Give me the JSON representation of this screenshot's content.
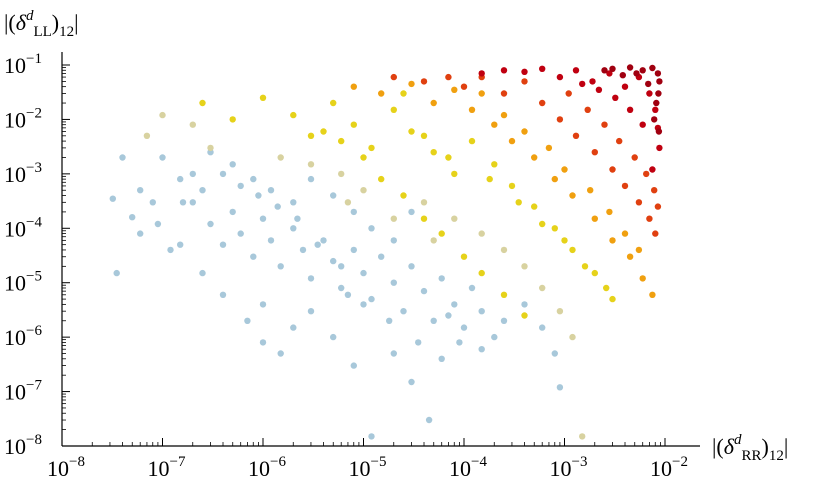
{
  "chart_data": {
    "type": "scatter",
    "title": "",
    "xlabel": {
      "prefix": "|(",
      "symbol": "δ",
      "superscript": "d",
      "subscript": "RR",
      "suffix": ")",
      "index": "12",
      "close": "|"
    },
    "ylabel": {
      "prefix": "|(",
      "symbol": "δ",
      "superscript": "d",
      "subscript": "LL",
      "suffix": ")",
      "index": "12",
      "close": "|"
    },
    "x_scale": "log",
    "y_scale": "log",
    "xlim": [
      1e-08,
      0.01
    ],
    "ylim": [
      1e-08,
      0.1
    ],
    "x_ticks": [
      {
        "base": "10",
        "exp": "−8",
        "value": 1e-08
      },
      {
        "base": "10",
        "exp": "−7",
        "value": 1e-07
      },
      {
        "base": "10",
        "exp": "−6",
        "value": 1e-06
      },
      {
        "base": "10",
        "exp": "−5",
        "value": 1e-05
      },
      {
        "base": "10",
        "exp": "−4",
        "value": 0.0001
      },
      {
        "base": "10",
        "exp": "−3",
        "value": 0.001
      },
      {
        "base": "10",
        "exp": "−2",
        "value": 0.01
      }
    ],
    "y_ticks": [
      {
        "base": "10",
        "exp": "−8",
        "value": 1e-08
      },
      {
        "base": "10",
        "exp": "−7",
        "value": 1e-07
      },
      {
        "base": "10",
        "exp": "−6",
        "value": 1e-06
      },
      {
        "base": "10",
        "exp": "−5",
        "value": 1e-05
      },
      {
        "base": "10",
        "exp": "−4",
        "value": 0.0001
      },
      {
        "base": "10",
        "exp": "−3",
        "value": 0.001
      },
      {
        "base": "10",
        "exp": "−2",
        "value": 0.01
      },
      {
        "base": "10",
        "exp": "−1",
        "value": 0.1
      }
    ],
    "grid": false,
    "legend": "none",
    "colors": {
      "low": "#a8c8da",
      "mid_low": "#d8d2a0",
      "mid": "#e6d21a",
      "mid_high": "#f0a010",
      "high": "#e04010",
      "top": "#c00010",
      "dark": "#a00010"
    },
    "series": [
      {
        "color_group": "low",
        "points": [
          [
            3.2e-08,
            0.00035
          ],
          [
            4e-08,
            0.002
          ],
          [
            5e-08,
            0.00016
          ],
          [
            6e-08,
            0.0005
          ],
          [
            8e-08,
            0.0003
          ],
          [
            1.2e-07,
            4e-05
          ],
          [
            1.5e-07,
            0.0008
          ],
          [
            2e-07,
            0.0003
          ],
          [
            3e-07,
            0.00012
          ],
          [
            4e-07,
            5e-05
          ],
          [
            5e-07,
            0.0002
          ],
          [
            6e-07,
            8e-05
          ],
          [
            8e-07,
            3e-05
          ],
          [
            1e-06,
            0.00015
          ],
          [
            1.2e-06,
            6e-05
          ],
          [
            1.5e-06,
            2e-05
          ],
          [
            2e-06,
            0.0001
          ],
          [
            2.5e-06,
            4e-05
          ],
          [
            3e-06,
            1.2e-05
          ],
          [
            4e-06,
            6e-05
          ],
          [
            5e-06,
            2.5e-05
          ],
          [
            6e-06,
            8e-06
          ],
          [
            8e-06,
            4e-05
          ],
          [
            1e-05,
            1.5e-05
          ],
          [
            1.2e-05,
            5e-06
          ],
          [
            1.5e-05,
            3e-05
          ],
          [
            2e-05,
            1e-05
          ],
          [
            2.5e-05,
            3e-06
          ],
          [
            3e-05,
            2e-05
          ],
          [
            4e-05,
            7e-06
          ],
          [
            5e-05,
            2e-06
          ],
          [
            6e-05,
            1.2e-05
          ],
          [
            8e-05,
            4e-06
          ],
          [
            0.0001,
            1.5e-06
          ],
          [
            0.00012,
            8e-06
          ],
          [
            0.00015,
            3e-06
          ],
          [
            0.0002,
            1e-06
          ],
          [
            1e-07,
            0.002
          ],
          [
            2e-07,
            0.001
          ],
          [
            3e-07,
            0.0025
          ],
          [
            5e-07,
            0.0015
          ],
          [
            8e-07,
            0.0008
          ],
          [
            1.2e-06,
            0.0005
          ],
          [
            2e-06,
            0.0003
          ],
          [
            3e-06,
            0.0008
          ],
          [
            5e-06,
            0.0004
          ],
          [
            8e-06,
            0.0002
          ],
          [
            1.2e-05,
            0.0001
          ],
          [
            2e-05,
            6e-05
          ],
          [
            3e-05,
            0.0002
          ],
          [
            5e-06,
            1e-06
          ],
          [
            8e-06,
            3e-07
          ],
          [
            1.2e-05,
            1.5e-08
          ],
          [
            3e-06,
            3e-06
          ],
          [
            2e-06,
            1.5e-06
          ],
          [
            1.5e-06,
            5e-07
          ],
          [
            1e-06,
            8e-07
          ],
          [
            7e-07,
            2e-06
          ],
          [
            4e-07,
            6e-06
          ],
          [
            2.5e-07,
            1.5e-05
          ],
          [
            1.5e-07,
            5e-05
          ],
          [
            9e-08,
            0.00012
          ],
          [
            6e-08,
            8e-05
          ],
          [
            3.5e-08,
            1.5e-05
          ],
          [
            2e-05,
            5e-07
          ],
          [
            3e-05,
            1.5e-07
          ],
          [
            4.5e-05,
            3e-08
          ],
          [
            6e-05,
            4e-07
          ],
          [
            9e-05,
            8e-07
          ],
          [
            0.00015,
            6e-07
          ],
          [
            0.00025,
            2e-06
          ],
          [
            0.0004,
            4e-06
          ],
          [
            0.0006,
            1.5e-06
          ],
          [
            0.0008,
            5e-07
          ],
          [
            0.0009,
            1.2e-07
          ],
          [
            7e-05,
            2.5e-06
          ],
          [
            3.5e-05,
            8e-07
          ],
          [
            1.8e-05,
            2e-06
          ],
          [
            1e-05,
            4e-06
          ],
          [
            6e-06,
            2e-05
          ],
          [
            3.5e-06,
            5e-05
          ],
          [
            2.2e-06,
            0.00015
          ],
          [
            1.4e-06,
            0.00025
          ],
          [
            9e-07,
            0.0004
          ],
          [
            6e-07,
            0.0006
          ],
          [
            4e-07,
            0.001
          ],
          [
            2.5e-07,
            0.0005
          ],
          [
            1.6e-07,
            0.0003
          ],
          [
            1e-06,
            4e-06
          ],
          [
            7e-06,
            6e-06
          ]
        ]
      },
      {
        "color_group": "mid_low",
        "points": [
          [
            7e-08,
            0.005
          ],
          [
            1e-07,
            0.012
          ],
          [
            2e-07,
            0.008
          ],
          [
            3e-07,
            0.003
          ],
          [
            1.5e-06,
            0.002
          ],
          [
            3e-06,
            0.0015
          ],
          [
            6e-06,
            0.001
          ],
          [
            1e-05,
            0.0005
          ],
          [
            4e-05,
            0.0003
          ],
          [
            8e-05,
            0.00015
          ],
          [
            0.00015,
            8e-05
          ],
          [
            0.00025,
            4e-05
          ],
          [
            0.0004,
            2e-05
          ],
          [
            0.0006,
            8e-06
          ],
          [
            0.0009,
            3e-06
          ],
          [
            0.0012,
            1e-06
          ],
          [
            0.0015,
            1.5e-08
          ],
          [
            5e-05,
            6e-05
          ],
          [
            2e-05,
            0.00015
          ],
          [
            7e-06,
            0.0003
          ]
        ]
      },
      {
        "color_group": "mid",
        "points": [
          [
            2.5e-07,
            0.02
          ],
          [
            5e-07,
            0.01
          ],
          [
            1e-06,
            0.025
          ],
          [
            2e-06,
            0.012
          ],
          [
            3e-06,
            0.005
          ],
          [
            5e-06,
            0.02
          ],
          [
            8e-06,
            0.008
          ],
          [
            1.2e-05,
            0.003
          ],
          [
            2e-05,
            0.015
          ],
          [
            3e-05,
            0.006
          ],
          [
            5e-05,
            0.0025
          ],
          [
            8e-05,
            0.001
          ],
          [
            0.00012,
            0.004
          ],
          [
            0.0002,
            0.0015
          ],
          [
            0.0003,
            0.0006
          ],
          [
            0.0005,
            0.00025
          ],
          [
            0.0008,
            0.0001
          ],
          [
            0.0012,
            4e-05
          ],
          [
            0.002,
            1.5e-05
          ],
          [
            0.003,
            5e-06
          ],
          [
            1.5e-05,
            0.0008
          ],
          [
            2.5e-05,
            0.0004
          ],
          [
            4e-05,
            0.00015
          ],
          [
            6e-05,
            8e-05
          ],
          [
            0.0001,
            3e-05
          ],
          [
            0.00015,
            1.5e-05
          ],
          [
            0.00025,
            6e-06
          ],
          [
            0.0004,
            2.5e-06
          ],
          [
            1e-05,
            0.002
          ],
          [
            6e-06,
            0.004
          ],
          [
            4e-06,
            0.006
          ],
          [
            2.5e-05,
            0.03
          ],
          [
            4e-05,
            0.005
          ],
          [
            7e-05,
            0.002
          ],
          [
            0.00018,
            0.0008
          ],
          [
            0.00035,
            0.0003
          ],
          [
            0.0006,
            0.00012
          ],
          [
            0.001,
            6e-05
          ],
          [
            0.0016,
            2e-05
          ],
          [
            0.0026,
            8e-06
          ]
        ]
      },
      {
        "color_group": "mid_high",
        "points": [
          [
            8e-06,
            0.04
          ],
          [
            1.5e-05,
            0.03
          ],
          [
            3e-05,
            0.045
          ],
          [
            5e-05,
            0.02
          ],
          [
            8e-05,
            0.035
          ],
          [
            0.00012,
            0.015
          ],
          [
            0.0002,
            0.008
          ],
          [
            0.0003,
            0.004
          ],
          [
            0.0005,
            0.002
          ],
          [
            0.0008,
            0.0008
          ],
          [
            0.0012,
            0.0004
          ],
          [
            0.002,
            0.00015
          ],
          [
            0.003,
            6e-05
          ],
          [
            0.0045,
            3e-05
          ],
          [
            0.006,
            1.2e-05
          ],
          [
            0.0075,
            6e-06
          ],
          [
            0.00015,
            0.03
          ],
          [
            0.00025,
            0.012
          ],
          [
            0.0004,
            0.006
          ],
          [
            0.0007,
            0.003
          ],
          [
            0.001,
            0.0012
          ],
          [
            0.0018,
            0.0005
          ],
          [
            0.0028,
            0.0002
          ],
          [
            0.004,
            8e-05
          ],
          [
            0.0055,
            4e-05
          ]
        ]
      },
      {
        "color_group": "high",
        "points": [
          [
            2e-05,
            0.06
          ],
          [
            4e-05,
            0.05
          ],
          [
            7e-05,
            0.06
          ],
          [
            0.0001,
            0.04
          ],
          [
            0.00015,
            0.06
          ],
          [
            0.00025,
            0.03
          ],
          [
            0.0004,
            0.05
          ],
          [
            0.0006,
            0.02
          ],
          [
            0.0009,
            0.01
          ],
          [
            0.0013,
            0.005
          ],
          [
            0.002,
            0.0025
          ],
          [
            0.003,
            0.0012
          ],
          [
            0.004,
            0.0006
          ],
          [
            0.0055,
            0.0003
          ],
          [
            0.007,
            0.00015
          ],
          [
            0.008,
            8e-05
          ],
          [
            0.0011,
            0.03
          ],
          [
            0.0017,
            0.015
          ],
          [
            0.0025,
            0.008
          ],
          [
            0.0035,
            0.004
          ],
          [
            0.005,
            0.002
          ],
          [
            0.0065,
            0.001
          ],
          [
            0.0078,
            0.0005
          ],
          [
            0.0085,
            0.00025
          ]
        ]
      },
      {
        "color_group": "top",
        "points": [
          [
            0.00015,
            0.07
          ],
          [
            0.00025,
            0.08
          ],
          [
            0.0004,
            0.075
          ],
          [
            0.0006,
            0.085
          ],
          [
            0.0009,
            0.06
          ],
          [
            0.0013,
            0.08
          ],
          [
            0.0019,
            0.05
          ],
          [
            0.0028,
            0.07
          ],
          [
            0.004,
            0.04
          ],
          [
            0.0055,
            0.06
          ],
          [
            0.007,
            0.03
          ],
          [
            0.008,
            0.015
          ],
          [
            0.0085,
            0.007
          ],
          [
            0.0088,
            0.003
          ],
          [
            0.0075,
            0.0012
          ],
          [
            0.006,
            0.008
          ],
          [
            0.0045,
            0.015
          ],
          [
            0.0032,
            0.025
          ],
          [
            0.0022,
            0.035
          ],
          [
            0.0015,
            0.045
          ]
        ]
      },
      {
        "color_group": "dark",
        "points": [
          [
            0.003,
            0.085
          ],
          [
            0.0045,
            0.09
          ],
          [
            0.006,
            0.08
          ],
          [
            0.0075,
            0.088
          ],
          [
            0.0085,
            0.07
          ],
          [
            0.0088,
            0.05
          ],
          [
            0.0086,
            0.03
          ],
          [
            0.0082,
            0.02
          ],
          [
            0.0078,
            0.01
          ],
          [
            0.0087,
            0.006
          ],
          [
            0.0068,
            0.045
          ],
          [
            0.0052,
            0.07
          ],
          [
            0.0038,
            0.065
          ],
          [
            0.0025,
            0.08
          ]
        ]
      }
    ]
  }
}
